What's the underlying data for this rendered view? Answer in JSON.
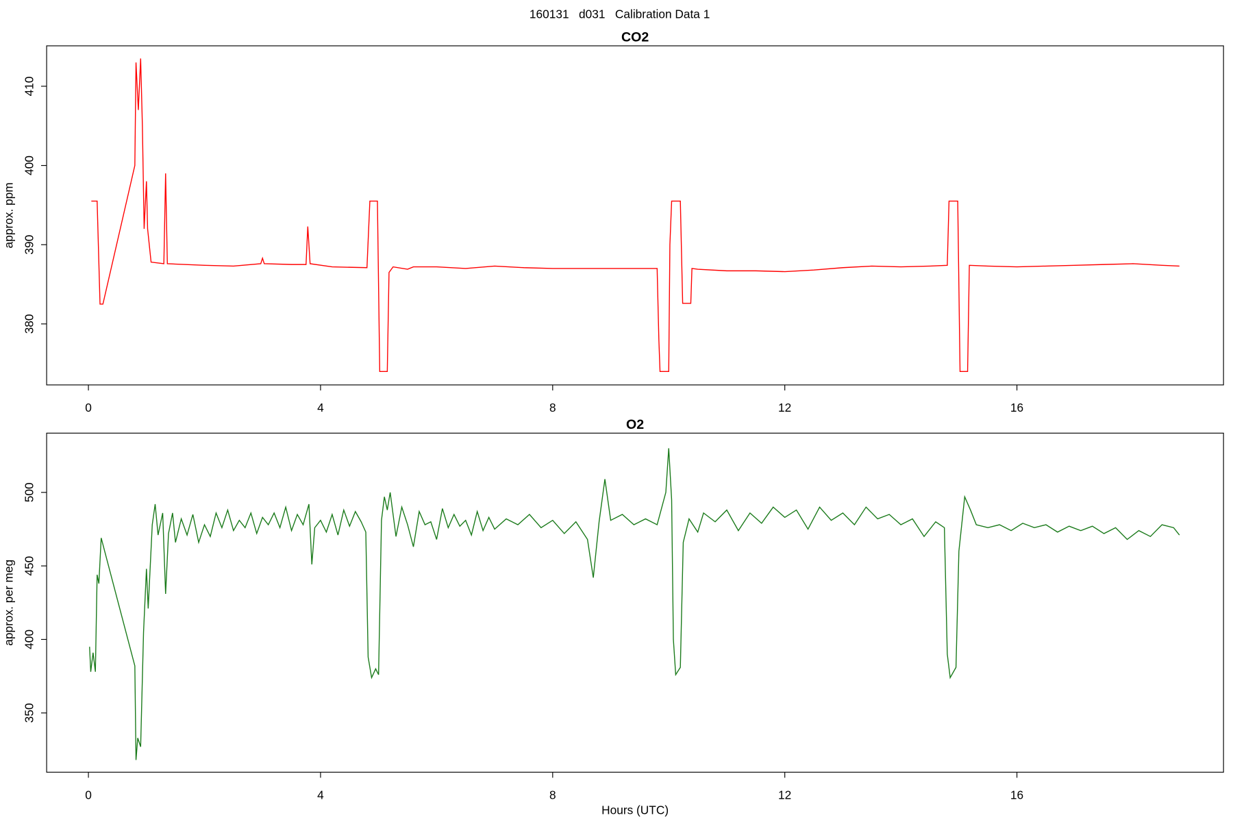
{
  "title": "160131   d031   Calibration Data 1",
  "chart_data": [
    {
      "type": "line",
      "title": "CO2",
      "ylabel": "approx. ppm",
      "xlim": [
        -0.72,
        19.56
      ],
      "ylim": [
        372.3,
        415.1
      ],
      "xticks": [
        0,
        4,
        8,
        12,
        16
      ],
      "yticks": [
        380,
        390,
        400,
        410
      ],
      "color": "#ff0000",
      "x": [
        0.05,
        0.15,
        0.2,
        0.25,
        0.8,
        0.82,
        0.86,
        0.9,
        0.93,
        0.96,
        1.0,
        1.02,
        1.08,
        1.3,
        1.33,
        1.36,
        2.0,
        2.5,
        2.97,
        3.0,
        3.03,
        3.5,
        3.75,
        3.78,
        3.82,
        4.2,
        4.8,
        4.85,
        4.98,
        5.02,
        5.15,
        5.18,
        5.25,
        5.5,
        5.6,
        6,
        6.5,
        7.0,
        7.5,
        8,
        8.5,
        9,
        9.5,
        9.8,
        9.83,
        9.85,
        10.0,
        10.02,
        10.05,
        10.2,
        10.24,
        10.38,
        10.4,
        10.5,
        11,
        11.5,
        12,
        12.5,
        13,
        13.5,
        14,
        14.5,
        14.8,
        14.83,
        14.98,
        15.02,
        15.15,
        15.18,
        15.5,
        16,
        16.5,
        17,
        17.5,
        18,
        18.5,
        18.8
      ],
      "values": [
        395.5,
        395.5,
        382.5,
        382.5,
        400,
        413,
        407,
        413.5,
        405,
        392,
        398,
        392,
        387.8,
        387.6,
        399,
        387.6,
        387.4,
        387.3,
        387.6,
        388.3,
        387.6,
        387.5,
        387.5,
        392.3,
        387.6,
        387.2,
        387.1,
        395.5,
        395.5,
        374,
        374,
        386.5,
        387.2,
        386.9,
        387.2,
        387.2,
        387.0,
        387.3,
        387.1,
        387.0,
        387.0,
        387.0,
        387.0,
        387.0,
        378,
        374,
        374,
        390,
        395.5,
        395.5,
        382.6,
        382.6,
        387,
        386.9,
        386.7,
        386.7,
        386.6,
        386.8,
        387.1,
        387.3,
        387.2,
        387.3,
        387.4,
        395.5,
        395.5,
        374,
        374,
        387.4,
        387.3,
        387.2,
        387.3,
        387.4,
        387.5,
        387.6,
        387.4,
        387.3
      ]
    },
    {
      "type": "line",
      "title": "O2",
      "ylabel": "approx. per meg",
      "xlabel": "Hours (UTC)",
      "xlim": [
        -0.72,
        19.56
      ],
      "ylim": [
        309.7,
        540.3
      ],
      "xticks": [
        0,
        4,
        8,
        12,
        16
      ],
      "yticks": [
        350,
        400,
        450,
        500
      ],
      "color": "#1a7a1a",
      "x": [
        0.02,
        0.04,
        0.08,
        0.12,
        0.15,
        0.18,
        0.22,
        0.8,
        0.82,
        0.85,
        0.9,
        0.95,
        1.0,
        1.03,
        1.1,
        1.15,
        1.2,
        1.28,
        1.33,
        1.38,
        1.45,
        1.5,
        1.6,
        1.7,
        1.8,
        1.9,
        2.0,
        2.1,
        2.2,
        2.3,
        2.4,
        2.5,
        2.6,
        2.7,
        2.8,
        2.9,
        3.0,
        3.1,
        3.2,
        3.3,
        3.4,
        3.5,
        3.6,
        3.7,
        3.8,
        3.85,
        3.9,
        4.0,
        4.1,
        4.2,
        4.3,
        4.4,
        4.5,
        4.6,
        4.7,
        4.78,
        4.82,
        4.88,
        4.95,
        5.0,
        5.05,
        5.1,
        5.15,
        5.2,
        5.3,
        5.4,
        5.5,
        5.6,
        5.7,
        5.8,
        5.9,
        6.0,
        6.1,
        6.2,
        6.3,
        6.4,
        6.5,
        6.6,
        6.7,
        6.8,
        6.9,
        7.0,
        7.2,
        7.4,
        7.6,
        7.8,
        8.0,
        8.2,
        8.4,
        8.6,
        8.7,
        8.8,
        8.9,
        9.0,
        9.2,
        9.4,
        9.6,
        9.8,
        9.95,
        10.0,
        10.05,
        10.08,
        10.12,
        10.2,
        10.25,
        10.35,
        10.5,
        10.6,
        10.8,
        11.0,
        11.2,
        11.4,
        11.6,
        11.8,
        12.0,
        12.2,
        12.4,
        12.6,
        12.8,
        13.0,
        13.2,
        13.4,
        13.6,
        13.8,
        14.0,
        14.2,
        14.4,
        14.6,
        14.75,
        14.8,
        14.85,
        14.95,
        15.0,
        15.1,
        15.2,
        15.3,
        15.5,
        15.7,
        15.9,
        16.1,
        16.3,
        16.5,
        16.7,
        16.9,
        17.1,
        17.3,
        17.5,
        17.7,
        17.9,
        18.1,
        18.3,
        18.5,
        18.7,
        18.8
      ],
      "values": [
        395,
        378,
        391,
        378,
        444,
        438,
        469,
        382,
        318,
        333,
        327,
        405,
        448,
        421,
        478,
        492,
        471,
        486,
        431,
        472,
        486,
        466,
        482,
        471,
        485,
        466,
        478,
        470,
        486,
        476,
        488,
        474,
        481,
        476,
        486,
        472,
        483,
        478,
        486,
        476,
        490,
        474,
        485,
        478,
        492,
        451,
        476,
        481,
        473,
        485,
        471,
        488,
        477,
        487,
        480,
        473,
        388,
        374,
        380,
        376,
        481,
        497,
        488,
        500,
        470,
        490,
        478,
        463,
        487,
        478,
        480,
        468,
        489,
        476,
        485,
        477,
        481,
        471,
        487,
        474,
        483,
        475,
        482,
        478,
        485,
        476,
        481,
        472,
        480,
        468,
        442,
        480,
        509,
        481,
        485,
        478,
        482,
        478,
        500,
        530,
        495,
        400,
        376,
        381,
        466,
        482,
        473,
        486,
        480,
        488,
        474,
        486,
        479,
        490,
        483,
        488,
        475,
        490,
        481,
        486,
        478,
        490,
        482,
        485,
        478,
        482,
        470,
        480,
        476,
        390,
        374,
        381,
        460,
        497,
        488,
        478,
        476,
        478,
        474,
        479,
        476,
        478,
        473,
        477,
        474,
        477,
        472,
        476,
        468,
        474,
        470,
        478,
        476,
        471
      ]
    }
  ]
}
